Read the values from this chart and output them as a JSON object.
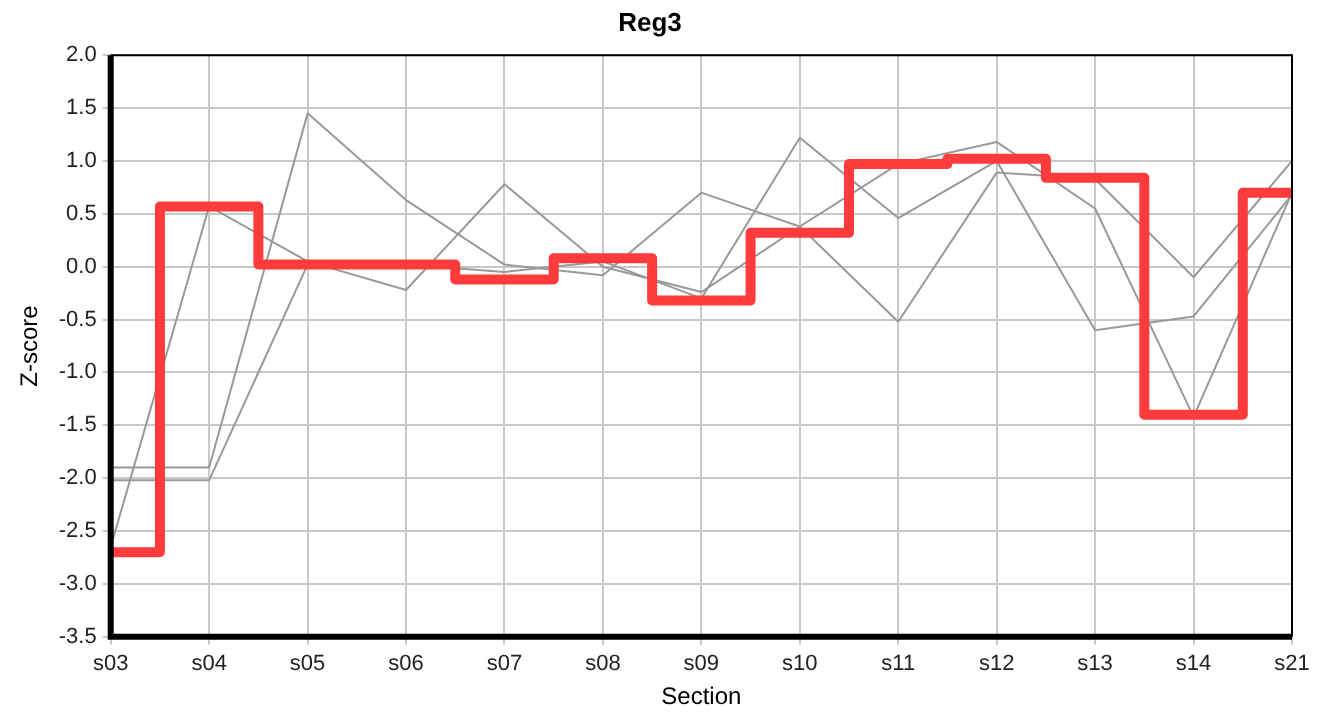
{
  "chart_data": {
    "type": "line",
    "title": "Reg3",
    "xlabel": "Section",
    "ylabel": "Z-score",
    "categories": [
      "s03",
      "s04",
      "s05",
      "s06",
      "s07",
      "s08",
      "s09",
      "s10",
      "s11",
      "s12",
      "s13",
      "s14",
      "s21"
    ],
    "series": [
      {
        "type": "line",
        "color": "#999999",
        "values": [
          -2.65,
          0.57,
          0.05,
          -0.22,
          0.78,
          0.0,
          -0.24,
          0.38,
          0.97,
          1.18,
          0.55,
          -1.42,
          0.7
        ]
      },
      {
        "type": "line",
        "color": "#999999",
        "values": [
          -1.9,
          -1.9,
          1.45,
          0.63,
          0.02,
          -0.08,
          0.7,
          0.38,
          -0.52,
          0.89,
          0.83,
          -0.1,
          1.0
        ]
      },
      {
        "type": "line",
        "color": "#999999",
        "values": [
          -2.02,
          -2.02,
          0.02,
          0.02,
          -0.05,
          0.05,
          -0.3,
          1.22,
          0.46,
          1.0,
          -0.6,
          -0.47,
          0.68
        ]
      },
      {
        "type": "step",
        "color": "#ff3b3b",
        "values": [
          -2.7,
          0.57,
          0.02,
          0.02,
          -0.12,
          0.08,
          -0.32,
          0.32,
          0.97,
          1.02,
          0.84,
          -1.4,
          0.7
        ]
      }
    ],
    "ylim": [
      -3.5,
      2.0
    ],
    "yticks": [
      {
        "value": -3.5,
        "label": "-3.5"
      },
      {
        "value": -3.0,
        "label": "-3.0"
      },
      {
        "value": -2.5,
        "label": "-2.5"
      },
      {
        "value": -2.0,
        "label": "-2.0"
      },
      {
        "value": -1.5,
        "label": "-1.5"
      },
      {
        "value": -1.0,
        "label": "-1.0"
      },
      {
        "value": -0.5,
        "label": "-0.5"
      },
      {
        "value": 0,
        "label": "0.0"
      },
      {
        "value": 0.5,
        "label": "0.5"
      },
      {
        "value": 1.0,
        "label": "1.0"
      },
      {
        "value": 1.5,
        "label": "1.5"
      },
      {
        "value": 2.0,
        "label": "2.0"
      }
    ],
    "grid": true,
    "legend": false,
    "marker": "none"
  }
}
